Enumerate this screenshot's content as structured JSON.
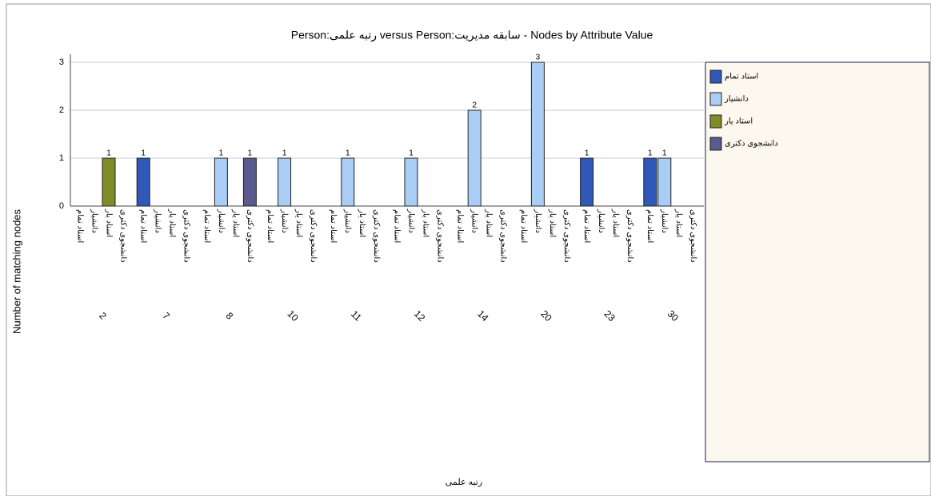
{
  "chart_data": {
    "type": "bar",
    "title": "Person:رتبه علمی versus Person:سابقه مدیریت - Nodes by Attribute Value",
    "y_label": "Number of matching nodes",
    "x_label": "رتبه علمی",
    "categories": [
      "2",
      "7",
      "8",
      "10",
      "11",
      "12",
      "14",
      "20",
      "23",
      "30"
    ],
    "series": [
      {
        "name": "استاد تمام",
        "color": "#2f58b8",
        "values": [
          0,
          1,
          0,
          0,
          0,
          0,
          0,
          0,
          1,
          1
        ]
      },
      {
        "name": "دانشیار",
        "color": "#a9cdf5",
        "values": [
          0,
          0,
          1,
          1,
          1,
          1,
          2,
          3,
          0,
          1
        ]
      },
      {
        "name": "استاد یار",
        "color": "#7f8c2a",
        "values": [
          1,
          0,
          0,
          0,
          0,
          0,
          0,
          0,
          0,
          0
        ]
      },
      {
        "name": "دانشجوی دکتری",
        "color": "#5a5a8c",
        "values": [
          0,
          0,
          1,
          0,
          0,
          0,
          0,
          0,
          0,
          0
        ]
      }
    ],
    "ylim": [
      0,
      3
    ],
    "yticks": [
      0,
      1,
      2,
      3
    ],
    "grid": true
  }
}
